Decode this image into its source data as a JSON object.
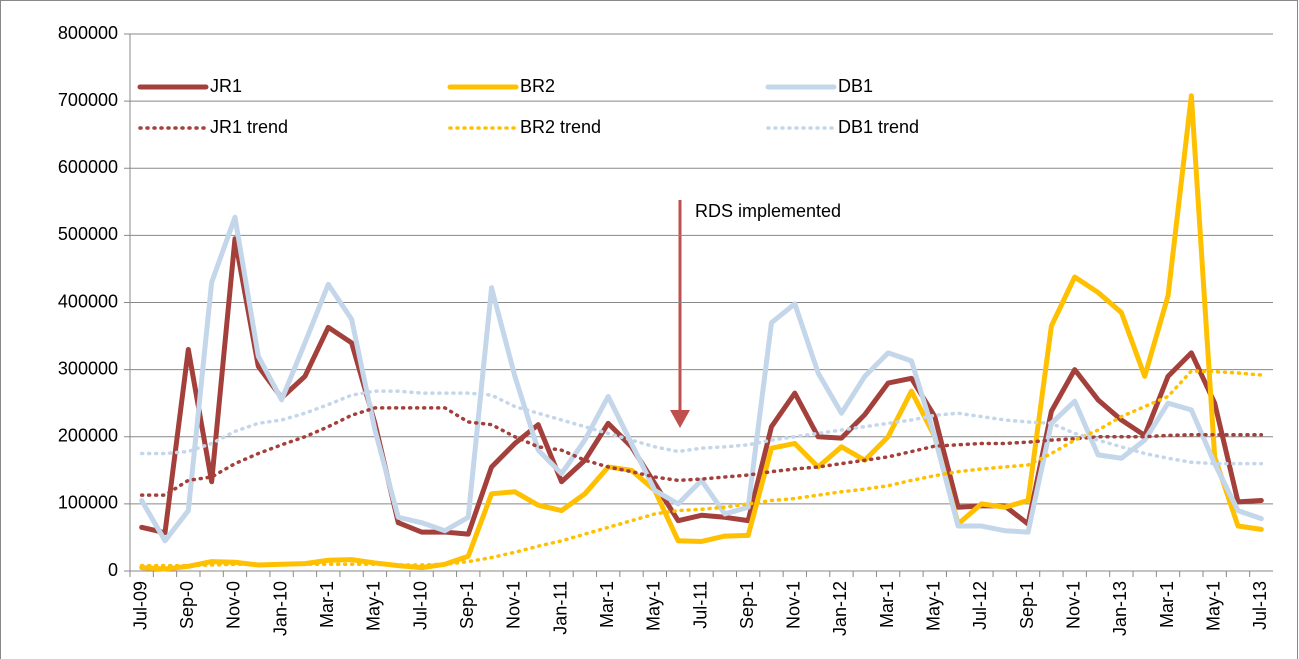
{
  "chart_data": {
    "type": "line",
    "annotation": "RDS implemented",
    "categories": [
      "Jul-09",
      null,
      "Sep-0",
      null,
      "Nov-0",
      null,
      "Jan-10",
      null,
      "Mar-1",
      null,
      "May-1",
      null,
      "Jul-10",
      null,
      "Sep-1",
      null,
      "Nov-1",
      null,
      "Jan-11",
      null,
      "Mar-1",
      null,
      "May-1",
      null,
      "Jul-11",
      null,
      "Sep-1",
      null,
      "Nov-1",
      null,
      "Jan-12",
      null,
      "Mar-1",
      null,
      "May-1",
      null,
      "Jul-12",
      null,
      "Sep-1",
      null,
      "Nov-1",
      null,
      "Jan-13",
      null,
      "Mar-1",
      null,
      "May-1",
      null,
      "Jul-13"
    ],
    "ylim": [
      0,
      800000
    ],
    "yticks": [
      0,
      100000,
      200000,
      300000,
      400000,
      500000,
      600000,
      700000,
      800000
    ],
    "grid": true,
    "legend": "top-left",
    "series": [
      {
        "name": "JR1",
        "color": "#a3403b",
        "style": "solid",
        "values": [
          65000,
          57000,
          330000,
          133000,
          495000,
          305000,
          258000,
          290000,
          363000,
          340000,
          220000,
          72000,
          58000,
          58000,
          55000,
          155000,
          190000,
          218000,
          133000,
          165000,
          220000,
          185000,
          130000,
          75000,
          83000,
          80000,
          75000,
          215000,
          265000,
          200000,
          198000,
          233000,
          280000,
          287000,
          230000,
          95000,
          97000,
          97000,
          70000,
          238000,
          300000,
          255000,
          225000,
          202000,
          290000,
          325000,
          250000,
          103000,
          105000
        ]
      },
      {
        "name": "BR2",
        "color": "#ffc000",
        "style": "solid",
        "values": [
          5000,
          3000,
          7000,
          14000,
          13000,
          9000,
          10000,
          11000,
          16000,
          17000,
          12000,
          8000,
          5000,
          10000,
          22000,
          115000,
          118000,
          98000,
          90000,
          115000,
          155000,
          150000,
          120000,
          45000,
          44000,
          52000,
          53000,
          183000,
          190000,
          155000,
          185000,
          165000,
          200000,
          268000,
          200000,
          70000,
          100000,
          95000,
          105000,
          365000,
          438000,
          415000,
          385000,
          290000,
          410000,
          708000,
          170000,
          67000,
          62000
        ]
      },
      {
        "name": "DB1",
        "color": "#c4d6ea",
        "style": "solid",
        "values": [
          105000,
          45000,
          90000,
          430000,
          527000,
          320000,
          255000,
          340000,
          427000,
          375000,
          210000,
          80000,
          72000,
          60000,
          80000,
          422000,
          290000,
          180000,
          145000,
          195000,
          260000,
          190000,
          120000,
          100000,
          135000,
          85000,
          95000,
          370000,
          398000,
          295000,
          235000,
          290000,
          325000,
          313000,
          200000,
          67000,
          67000,
          60000,
          58000,
          220000,
          253000,
          173000,
          168000,
          195000,
          250000,
          240000,
          160000,
          90000,
          78000
        ]
      },
      {
        "name": "JR1 trend",
        "color": "#a3403b",
        "style": "dotted",
        "values": [
          113000,
          113000,
          135000,
          140000,
          160000,
          175000,
          188000,
          200000,
          215000,
          232000,
          243000,
          243000,
          243000,
          243000,
          222000,
          218000,
          200000,
          185000,
          180000,
          165000,
          155000,
          148000,
          140000,
          135000,
          137000,
          140000,
          143000,
          148000,
          152000,
          155000,
          160000,
          165000,
          170000,
          178000,
          186000,
          188000,
          190000,
          190000,
          192000,
          195000,
          197000,
          200000,
          200000,
          200000,
          202000,
          203000,
          203000,
          203000,
          203000
        ]
      },
      {
        "name": "BR2 trend",
        "color": "#ffc000",
        "style": "dotted",
        "values": [
          8000,
          8000,
          8000,
          9000,
          10000,
          10000,
          10000,
          10000,
          10000,
          10000,
          10000,
          9000,
          9000,
          10000,
          14000,
          20000,
          28000,
          37000,
          45000,
          55000,
          65000,
          75000,
          85000,
          90000,
          92000,
          95000,
          100000,
          105000,
          108000,
          113000,
          118000,
          122000,
          127000,
          135000,
          142000,
          148000,
          152000,
          155000,
          158000,
          175000,
          195000,
          210000,
          230000,
          245000,
          260000,
          298000,
          297000,
          295000,
          292000
        ]
      },
      {
        "name": "DB1 trend",
        "color": "#c4d6ea",
        "style": "dotted",
        "values": [
          175000,
          175000,
          178000,
          190000,
          208000,
          220000,
          225000,
          235000,
          248000,
          262000,
          268000,
          268000,
          265000,
          265000,
          265000,
          262000,
          245000,
          235000,
          225000,
          215000,
          205000,
          195000,
          185000,
          178000,
          183000,
          185000,
          188000,
          195000,
          200000,
          205000,
          210000,
          215000,
          220000,
          225000,
          232000,
          235000,
          230000,
          225000,
          222000,
          220000,
          205000,
          195000,
          185000,
          175000,
          168000,
          162000,
          160000,
          160000,
          160000
        ]
      }
    ]
  }
}
